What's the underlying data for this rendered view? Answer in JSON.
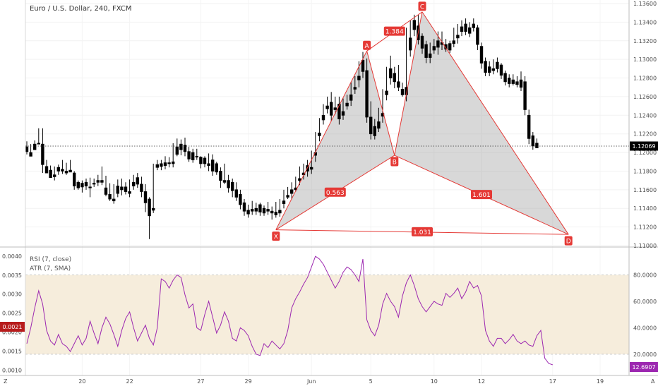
{
  "title": "Euro / U.S. Dollar, 240, FXCM",
  "indicators": [
    "RSI (7, close)",
    "ATR (7, SMA)"
  ],
  "corner_left": "Z",
  "corner_right": "A",
  "colors": {
    "pattern": "#e53935",
    "pattern_fill": "#9e9e9e",
    "candle": "#000000",
    "rsi": "#9c27b0",
    "atr": "#b71c1c",
    "rsi_band": "#f6eddc"
  },
  "chart_data": {
    "type": "candlestick",
    "price_axis": {
      "min": 1.11,
      "max": 1.136,
      "ticks": [
        "1.13600",
        "1.13400",
        "1.13200",
        "1.13000",
        "1.12800",
        "1.12600",
        "1.12400",
        "1.12200",
        "1.12000",
        "1.11800",
        "1.11600",
        "1.11400",
        "1.11200",
        "1.11000"
      ]
    },
    "last_price": "1.12069",
    "last_price_value": 1.12069,
    "x_tick_labels": [
      "20",
      "22",
      "27",
      "29",
      "Jun",
      "5",
      "10",
      "12",
      "17",
      "19"
    ],
    "candles": [
      [
        1.1206,
        1.1212,
        1.1201,
        1.1198
      ],
      [
        1.12,
        1.1209,
        1.1196,
        1.1202
      ],
      [
        1.1209,
        1.1213,
        1.1203,
        1.1206
      ],
      [
        1.121,
        1.1226,
        1.1209,
        1.1212
      ],
      [
        1.1209,
        1.1226,
        1.1187,
        1.1178
      ],
      [
        1.1185,
        1.1192,
        1.1178,
        1.1178
      ],
      [
        1.1181,
        1.1186,
        1.1173,
        1.1176
      ],
      [
        1.1176,
        1.1185,
        1.1174,
        1.117
      ],
      [
        1.1184,
        1.1187,
        1.118,
        1.1176
      ],
      [
        1.1182,
        1.1192,
        1.118,
        1.1177
      ],
      [
        1.118,
        1.1189,
        1.1178,
        1.1176
      ],
      [
        1.1181,
        1.1192,
        1.1179,
        1.1182
      ],
      [
        1.1178,
        1.118,
        1.1164,
        1.116
      ],
      [
        1.1168,
        1.117,
        1.1162,
        1.116
      ],
      [
        1.1167,
        1.117,
        1.1163,
        1.1157
      ],
      [
        1.1168,
        1.1172,
        1.1164,
        1.116
      ],
      [
        1.1163,
        1.1173,
        1.1162,
        1.1152
      ],
      [
        1.1167,
        1.1172,
        1.1166,
        1.1163
      ],
      [
        1.117,
        1.1176,
        1.1168,
        1.1164
      ],
      [
        1.117,
        1.1185,
        1.1168,
        1.1165
      ],
      [
        1.1162,
        1.1175,
        1.1155,
        1.1153
      ],
      [
        1.1155,
        1.1167,
        1.115,
        1.1148
      ],
      [
        1.115,
        1.1166,
        1.1148,
        1.1145
      ],
      [
        1.1164,
        1.1171,
        1.1156,
        1.1152
      ],
      [
        1.1163,
        1.1172,
        1.116,
        1.1154
      ],
      [
        1.1163,
        1.1168,
        1.1158,
        1.1155
      ],
      [
        1.1158,
        1.1171,
        1.1156,
        1.1152
      ],
      [
        1.1168,
        1.1176,
        1.1164,
        1.116
      ],
      [
        1.1173,
        1.1178,
        1.1166,
        1.1162
      ],
      [
        1.1166,
        1.1174,
        1.1158,
        1.1152
      ],
      [
        1.1158,
        1.1166,
        1.1146,
        1.1136
      ],
      [
        1.115,
        1.1152,
        1.1132,
        1.1107
      ],
      [
        1.114,
        1.1188,
        1.1138,
        1.1135
      ],
      [
        1.1187,
        1.1192,
        1.1184,
        1.1181
      ],
      [
        1.1188,
        1.1192,
        1.1185,
        1.1181
      ],
      [
        1.1189,
        1.1196,
        1.1186,
        1.1182
      ],
      [
        1.1189,
        1.1195,
        1.1188,
        1.1184
      ],
      [
        1.119,
        1.121,
        1.1188,
        1.1184
      ],
      [
        1.1206,
        1.1215,
        1.1198,
        1.1196
      ],
      [
        1.1209,
        1.1214,
        1.1203,
        1.1197
      ],
      [
        1.1208,
        1.1216,
        1.1201,
        1.1196
      ],
      [
        1.1201,
        1.1206,
        1.1193,
        1.119
      ],
      [
        1.12,
        1.1204,
        1.1192,
        1.1189
      ],
      [
        1.1196,
        1.1204,
        1.1195,
        1.1192
      ],
      [
        1.1195,
        1.1196,
        1.1188,
        1.1183
      ],
      [
        1.1194,
        1.1196,
        1.1188,
        1.1184
      ],
      [
        1.1188,
        1.1199,
        1.1186,
        1.118
      ],
      [
        1.1192,
        1.1198,
        1.118,
        1.1175
      ],
      [
        1.1188,
        1.119,
        1.1179,
        1.1176
      ],
      [
        1.118,
        1.1184,
        1.117,
        1.1162
      ],
      [
        1.117,
        1.1188,
        1.1168,
        1.1166
      ],
      [
        1.117,
        1.1176,
        1.1162,
        1.1157
      ],
      [
        1.1168,
        1.1172,
        1.1159,
        1.1152
      ],
      [
        1.116,
        1.1168,
        1.1152,
        1.1148
      ],
      [
        1.1155,
        1.116,
        1.1144,
        1.1139
      ],
      [
        1.1146,
        1.115,
        1.1137,
        1.1132
      ],
      [
        1.1138,
        1.1144,
        1.1134,
        1.113
      ],
      [
        1.1139,
        1.1148,
        1.1137,
        1.1133
      ],
      [
        1.114,
        1.1146,
        1.1137,
        1.1133
      ],
      [
        1.1144,
        1.1146,
        1.1136,
        1.1132
      ],
      [
        1.114,
        1.1143,
        1.1135,
        1.1132
      ],
      [
        1.1139,
        1.1147,
        1.1137,
        1.1133
      ],
      [
        1.1137,
        1.1142,
        1.1135,
        1.1128
      ],
      [
        1.1136,
        1.1147,
        1.1133,
        1.113
      ],
      [
        1.1138,
        1.115,
        1.1135,
        1.1131
      ],
      [
        1.1148,
        1.116,
        1.1145,
        1.114
      ],
      [
        1.1154,
        1.1163,
        1.1152,
        1.115
      ],
      [
        1.116,
        1.1168,
        1.1156,
        1.115
      ],
      [
        1.1162,
        1.1174,
        1.116,
        1.1158
      ],
      [
        1.1172,
        1.1185,
        1.117,
        1.1165
      ],
      [
        1.1178,
        1.1188,
        1.1176,
        1.1171
      ],
      [
        1.1186,
        1.1192,
        1.118,
        1.1174
      ],
      [
        1.1184,
        1.1202,
        1.1182,
        1.1177
      ],
      [
        1.12,
        1.1222,
        1.1197,
        1.119
      ],
      [
        1.1221,
        1.1237,
        1.1218,
        1.1212
      ],
      [
        1.124,
        1.1252,
        1.1235,
        1.123
      ],
      [
        1.125,
        1.126,
        1.1247,
        1.1242
      ],
      [
        1.1254,
        1.1265,
        1.124,
        1.1234
      ],
      [
        1.1248,
        1.126,
        1.1246,
        1.1241
      ],
      [
        1.1252,
        1.126,
        1.1236,
        1.123
      ],
      [
        1.1244,
        1.1258,
        1.124,
        1.1235
      ],
      [
        1.1253,
        1.1262,
        1.125,
        1.1246
      ],
      [
        1.1262,
        1.1276,
        1.1256,
        1.125
      ],
      [
        1.127,
        1.1282,
        1.1268,
        1.1263
      ],
      [
        1.1282,
        1.1298,
        1.1278,
        1.127
      ],
      [
        1.1299,
        1.1308,
        1.1287,
        1.128
      ],
      [
        1.1288,
        1.1301,
        1.1238,
        1.1232
      ],
      [
        1.1238,
        1.1255,
        1.122,
        1.1214
      ],
      [
        1.1228,
        1.1236,
        1.1218,
        1.1214
      ],
      [
        1.1233,
        1.1248,
        1.1226,
        1.1222
      ],
      [
        1.1242,
        1.1268,
        1.1239,
        1.1232
      ],
      [
        1.1266,
        1.1292,
        1.1262,
        1.1256
      ],
      [
        1.129,
        1.1304,
        1.128,
        1.1273
      ],
      [
        1.1285,
        1.1292,
        1.1276,
        1.1269
      ],
      [
        1.1276,
        1.1294,
        1.127,
        1.1266
      ],
      [
        1.1268,
        1.1275,
        1.1262,
        1.126
      ],
      [
        1.127,
        1.1334,
        1.1262,
        1.1255
      ],
      [
        1.1323,
        1.1342,
        1.131,
        1.1303
      ],
      [
        1.1342,
        1.1348,
        1.1332,
        1.1325
      ],
      [
        1.1336,
        1.1348,
        1.1321,
        1.1316
      ],
      [
        1.1325,
        1.1328,
        1.1312,
        1.1306
      ],
      [
        1.1316,
        1.132,
        1.1302,
        1.1296
      ],
      [
        1.1306,
        1.1318,
        1.1302,
        1.1296
      ],
      [
        1.1314,
        1.1322,
        1.131,
        1.1306
      ],
      [
        1.132,
        1.133,
        1.1313,
        1.1305
      ],
      [
        1.1318,
        1.133,
        1.1316,
        1.131
      ],
      [
        1.1316,
        1.1322,
        1.1311,
        1.1308
      ],
      [
        1.1317,
        1.132,
        1.131,
        1.1307
      ],
      [
        1.132,
        1.1334,
        1.1317,
        1.1313
      ],
      [
        1.1326,
        1.1338,
        1.1323,
        1.1317
      ],
      [
        1.1335,
        1.1342,
        1.133,
        1.1325
      ],
      [
        1.1338,
        1.1344,
        1.133,
        1.1326
      ],
      [
        1.1334,
        1.134,
        1.1328,
        1.1324
      ],
      [
        1.1338,
        1.1344,
        1.1334,
        1.133
      ],
      [
        1.1334,
        1.1337,
        1.1316,
        1.131
      ],
      [
        1.1314,
        1.1318,
        1.1296,
        1.129
      ],
      [
        1.1298,
        1.1302,
        1.1286,
        1.1282
      ],
      [
        1.1292,
        1.1298,
        1.1286,
        1.1282
      ],
      [
        1.129,
        1.13,
        1.1288,
        1.1284
      ],
      [
        1.1297,
        1.1302,
        1.129,
        1.1286
      ],
      [
        1.1294,
        1.1296,
        1.1283,
        1.1279
      ],
      [
        1.1285,
        1.1288,
        1.1276,
        1.1272
      ],
      [
        1.128,
        1.1284,
        1.1274,
        1.127
      ],
      [
        1.1278,
        1.1284,
        1.1274,
        1.1272
      ],
      [
        1.1276,
        1.1282,
        1.1273,
        1.127
      ],
      [
        1.1278,
        1.1287,
        1.127,
        1.1266
      ],
      [
        1.1276,
        1.1282,
        1.1246,
        1.124
      ],
      [
        1.124,
        1.1246,
        1.1215,
        1.1209
      ],
      [
        1.1218,
        1.1222,
        1.1207,
        1.1203
      ],
      [
        1.121,
        1.1215,
        1.1205,
        1.1205
      ]
    ],
    "harmonic_pattern": {
      "points": [
        {
          "label": "X",
          "candle": 63,
          "price": 1.1117
        },
        {
          "label": "A",
          "candle": 86,
          "price": 1.1309
        },
        {
          "label": "B",
          "candle": 93,
          "price": 1.1197
        },
        {
          "label": "C",
          "candle": 100,
          "price": 1.1351
        },
        {
          "label": "D",
          "candle": 137,
          "price": 1.1112
        }
      ],
      "ratios": [
        {
          "value": "0.563",
          "between": [
            "X",
            "B"
          ]
        },
        {
          "value": "1.384",
          "between": [
            "A",
            "C"
          ]
        },
        {
          "value": "1.601",
          "between": [
            "B",
            "D"
          ]
        },
        {
          "value": "1.031",
          "between": [
            "X",
            "D"
          ]
        }
      ]
    },
    "indicator_pane": {
      "left_axis": {
        "min": 0.0009,
        "max": 0.0042,
        "ticks": [
          "0.0040",
          "0.0035",
          "0.0030",
          "0.0025",
          "0.0020",
          "0.0015",
          "0.0010"
        ]
      },
      "right_axis": {
        "min": 5,
        "max": 100,
        "ticks": [
          "80.0000",
          "60.0000",
          "40.0000",
          "20.0000"
        ]
      },
      "rsi_band": [
        20,
        80
      ],
      "atr_last": "0.0021",
      "rsi_last": "12.6907",
      "rsi_values": [
        28,
        40,
        55,
        68,
        58,
        38,
        30,
        27,
        35,
        28,
        26,
        22,
        28,
        34,
        27,
        32,
        45,
        36,
        28,
        40,
        48,
        43,
        35,
        26,
        38,
        47,
        52,
        40,
        30,
        36,
        42,
        32,
        27,
        40,
        77,
        75,
        70,
        76,
        80,
        78,
        65,
        55,
        58,
        40,
        38,
        50,
        60,
        48,
        36,
        42,
        52,
        45,
        32,
        30,
        40,
        38,
        34,
        26,
        20,
        19,
        28,
        25,
        30,
        27,
        24,
        28,
        38,
        55,
        62,
        67,
        73,
        78,
        86,
        94,
        92,
        88,
        82,
        76,
        70,
        75,
        82,
        86,
        84,
        80,
        75,
        92,
        46,
        38,
        34,
        42,
        58,
        66,
        60,
        56,
        48,
        64,
        74,
        80,
        72,
        62,
        56,
        52,
        56,
        60,
        58,
        57,
        66,
        63,
        66,
        70,
        62,
        67,
        75,
        70,
        72,
        64,
        38,
        30,
        26,
        32,
        32,
        28,
        31,
        35,
        30,
        28,
        30,
        27,
        26,
        34,
        38,
        17,
        13,
        12
      ]
    }
  }
}
